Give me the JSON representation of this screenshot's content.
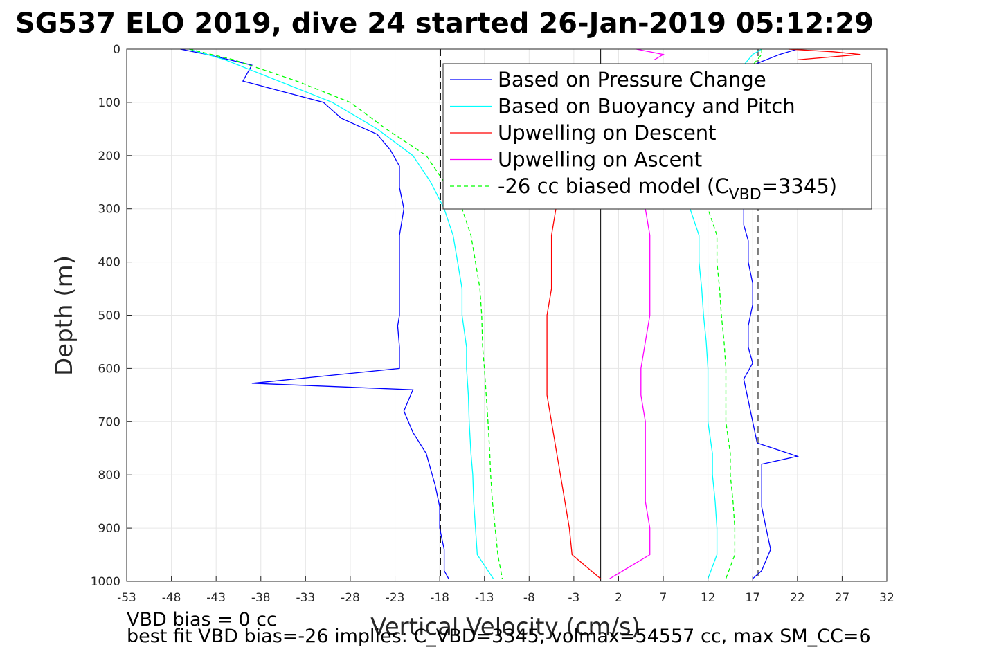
{
  "chart_data": {
    "type": "line",
    "title": "SG537 ELO 2019, dive 24 started 26-Jan-2019 05:12:29",
    "xlabel": "Vertical Velocity (cm/s)",
    "ylabel": "Depth (m)",
    "xlim": [
      -53,
      32
    ],
    "ylim": [
      0,
      1000
    ],
    "y_reversed": true,
    "grid": true,
    "x_ticks": [
      -53,
      -48,
      -43,
      -38,
      -33,
      -28,
      -23,
      -18,
      -13,
      -8,
      -3,
      2,
      7,
      12,
      17,
      22,
      27,
      32
    ],
    "y_ticks": [
      0,
      100,
      200,
      300,
      400,
      500,
      600,
      700,
      800,
      900,
      1000
    ],
    "legend_position": "upper-right",
    "reference_lines": [
      {
        "orientation": "vertical",
        "x": -17.9,
        "style": "dashed",
        "color": "#000000"
      },
      {
        "orientation": "vertical",
        "x": 17.6,
        "style": "dashed",
        "color": "#000000"
      },
      {
        "orientation": "vertical",
        "x": 0,
        "style": "solid",
        "color": "#000000"
      }
    ],
    "series": [
      {
        "name": "Based on Pressure Change",
        "color": "#0000ff",
        "dash": "solid",
        "branches": [
          {
            "depth": [
              0,
              10,
              30,
              60,
              100,
              130,
              160,
              190,
              220,
              260,
              300,
              350,
              400,
              450,
              500,
              520,
              560,
              600,
              628,
              640,
              680,
              720,
              760,
              790,
              820,
              860,
              900,
              940,
              980,
              995
            ],
            "velocity": [
              -47,
              -44,
              -39,
              -40,
              -31,
              -29,
              -25,
              -23.5,
              -22.5,
              -22.5,
              -22,
              -22.5,
              -22.5,
              -22.5,
              -22.5,
              -22.7,
              -22.5,
              -22.5,
              -39,
              -21,
              -22,
              -21,
              -19.5,
              -19,
              -18.5,
              -18,
              -18,
              -17.5,
              -17.5,
              -17
            ]
          },
          {
            "depth": [
              995,
              980,
              940,
              900,
              860,
              820,
              780,
              765,
              740,
              700,
              660,
              620,
              590,
              560,
              520,
              480,
              440,
              400,
              360,
              330,
              300,
              200,
              100,
              30,
              10,
              0
            ],
            "velocity": [
              17,
              18,
              19,
              18.5,
              18,
              18,
              18,
              22,
              17.5,
              17,
              16.5,
              16,
              17,
              16.5,
              16.5,
              17,
              17,
              16.5,
              16.5,
              16,
              16,
              16,
              16,
              17,
              20,
              22
            ]
          }
        ]
      },
      {
        "name": "Based on Buoyancy and Pitch",
        "color": "#00ffff",
        "dash": "solid",
        "branches": [
          {
            "depth": [
              0,
              20,
              60,
              100,
              150,
              200,
              250,
              300,
              350,
              400,
              450,
              500,
              560,
              600,
              650,
              700,
              760,
              800,
              850,
              900,
              950,
              995
            ],
            "velocity": [
              -46,
              -42,
              -36,
              -30,
              -25,
              -21,
              -19,
              -17.5,
              -16.5,
              -16,
              -15.5,
              -15.5,
              -15,
              -15,
              -14.8,
              -14.7,
              -14.5,
              -14.3,
              -14.2,
              -14,
              -13.8,
              -12
            ]
          },
          {
            "depth": [
              995,
              950,
              900,
              850,
              800,
              760,
              700,
              650,
              600,
              550,
              500,
              450,
              400,
              350,
              300,
              30,
              10,
              0
            ],
            "velocity": [
              12,
              13,
              13,
              12.8,
              12.5,
              12.5,
              12,
              12,
              12,
              11.8,
              11.5,
              11.3,
              11,
              11,
              10,
              16,
              17,
              18
            ]
          }
        ]
      },
      {
        "name": "Upwelling on Descent",
        "color": "#ff0000",
        "dash": "solid",
        "branches": [
          {
            "depth": [
              300,
              350,
              400,
              450,
              500,
              550,
              600,
              650,
              700,
              750,
              800,
              850,
              900,
              950,
              995
            ],
            "velocity": [
              -5,
              -5.5,
              -5.5,
              -5.5,
              -6,
              -6,
              -6,
              -6,
              -5.5,
              -5,
              -4.5,
              -4,
              -3.5,
              -3.2,
              0
            ]
          },
          {
            "depth": [
              0,
              5,
              10,
              20
            ],
            "velocity": [
              21,
              26,
              29,
              22
            ]
          }
        ]
      },
      {
        "name": "Upwelling on Ascent",
        "color": "#ff00ff",
        "dash": "solid",
        "branches": [
          {
            "depth": [
              300,
              350,
              400,
              450,
              500,
              550,
              600,
              650,
              700,
              750,
              800,
              850,
              900,
              950,
              995
            ],
            "velocity": [
              5,
              5.5,
              5.5,
              5.5,
              5.5,
              5,
              4.5,
              4.5,
              5,
              5,
              5,
              5,
              5.5,
              5.5,
              1
            ]
          },
          {
            "depth": [
              0,
              10,
              20
            ],
            "velocity": [
              4,
              7,
              6
            ]
          }
        ]
      },
      {
        "name": "-26 cc biased model (C",
        "name_subscript": "VBD",
        "name_suffix": "=3345)",
        "color": "#00ff00",
        "dash": "dashed",
        "branches": [
          {
            "depth": [
              0,
              20,
              60,
              100,
              150,
              200,
              250,
              300,
              350,
              400,
              450,
              500,
              560,
              600,
              650,
              700,
              760,
              800,
              850,
              900,
              950,
              995
            ],
            "velocity": [
              -46,
              -41,
              -34,
              -28,
              -24,
              -19.5,
              -17.5,
              -15.5,
              -14.5,
              -14,
              -13.5,
              -13.3,
              -13.2,
              -13,
              -12.8,
              -12.6,
              -12.4,
              -12.3,
              -12.1,
              -11.8,
              -11.5,
              -11
            ]
          },
          {
            "depth": [
              995,
              950,
              900,
              850,
              800,
              760,
              700,
              650,
              600,
              550,
              500,
              450,
              400,
              350,
              300,
              30,
              10,
              0
            ],
            "velocity": [
              14,
              15,
              15,
              14.8,
              14.5,
              14.5,
              14,
              14,
              14,
              13.8,
              13.5,
              13.3,
              13,
              13,
              12,
              17,
              18,
              18
            ]
          }
        ]
      }
    ],
    "annotations": [
      "VBD bias = 0 cc",
      "best fit VBD bias=-26 implies: C_VBD=3345, volmax=54557 cc, max SM_CC=6"
    ]
  }
}
